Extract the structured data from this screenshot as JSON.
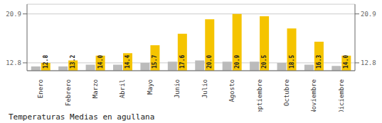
{
  "chart_data": {
    "type": "bar",
    "title": "Temperaturas Medias en agullana",
    "categories": [
      "Enero",
      "Febrero",
      "Marzo",
      "Abril",
      "Mayo",
      "Junio",
      "Julio",
      "Agosto",
      "Septiembre",
      "Octubre",
      "Noviembre",
      "Diciembre"
    ],
    "series": [
      {
        "color": "#BBBBBB",
        "values": [
          12.2,
          12.2,
          12.5,
          12.5,
          12.8,
          13.0,
          13.2,
          13.0,
          13.0,
          12.8,
          12.5,
          12.3
        ]
      },
      {
        "color": "#F5C400",
        "values": [
          12.8,
          13.2,
          14.0,
          14.4,
          15.7,
          17.6,
          20.0,
          20.9,
          20.5,
          18.5,
          16.3,
          14.0
        ],
        "data_labels": true,
        "value_labels": [
          "12.8",
          "13.2",
          "14.0",
          "14.4",
          "15.7",
          "17.6",
          "20.0",
          "20.9",
          "20.5",
          "18.5",
          "16.3",
          "14.0"
        ]
      }
    ],
    "ylim": [
      11.5,
      22.5
    ],
    "yticks": [
      12.8,
      20.9
    ],
    "grid": true
  }
}
